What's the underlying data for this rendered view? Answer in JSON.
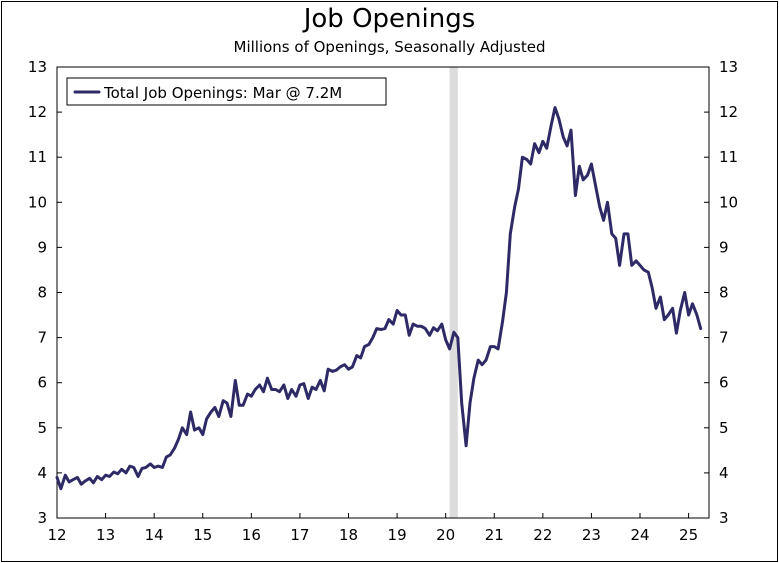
{
  "chart_data": {
    "type": "line",
    "title": "Job Openings",
    "subtitle": "Millions of Openings, Seasonally Adjusted",
    "xlabel": "",
    "ylabel": "",
    "x_ticks": [
      "12",
      "13",
      "14",
      "15",
      "16",
      "17",
      "18",
      "19",
      "20",
      "21",
      "22",
      "23",
      "24",
      "25"
    ],
    "y_ticks": [
      "3",
      "4",
      "5",
      "6",
      "7",
      "8",
      "9",
      "10",
      "11",
      "12",
      "13"
    ],
    "xlim": [
      2012.0,
      2025.42
    ],
    "ylim": [
      3,
      13
    ],
    "grid": false,
    "legend_position": "top-left",
    "recession": {
      "start": 2020.08,
      "end": 2020.25
    },
    "series": [
      {
        "name": "Total Job Openings: Mar @ 7.2M",
        "color": "#2e2a66",
        "points": [
          [
            2012.0,
            3.9
          ],
          [
            2012.08,
            3.65
          ],
          [
            2012.17,
            3.95
          ],
          [
            2012.25,
            3.8
          ],
          [
            2012.33,
            3.85
          ],
          [
            2012.42,
            3.9
          ],
          [
            2012.5,
            3.75
          ],
          [
            2012.58,
            3.82
          ],
          [
            2012.67,
            3.88
          ],
          [
            2012.75,
            3.78
          ],
          [
            2012.83,
            3.92
          ],
          [
            2012.92,
            3.85
          ],
          [
            2013.0,
            3.95
          ],
          [
            2013.08,
            3.92
          ],
          [
            2013.17,
            4.02
          ],
          [
            2013.25,
            3.98
          ],
          [
            2013.33,
            4.08
          ],
          [
            2013.42,
            4.0
          ],
          [
            2013.5,
            4.15
          ],
          [
            2013.58,
            4.12
          ],
          [
            2013.67,
            3.92
          ],
          [
            2013.75,
            4.1
          ],
          [
            2013.83,
            4.12
          ],
          [
            2013.92,
            4.2
          ],
          [
            2014.0,
            4.12
          ],
          [
            2014.08,
            4.15
          ],
          [
            2014.17,
            4.12
          ],
          [
            2014.25,
            4.35
          ],
          [
            2014.33,
            4.4
          ],
          [
            2014.42,
            4.55
          ],
          [
            2014.5,
            4.75
          ],
          [
            2014.58,
            5.0
          ],
          [
            2014.67,
            4.85
          ],
          [
            2014.75,
            5.35
          ],
          [
            2014.83,
            4.95
          ],
          [
            2014.92,
            5.0
          ],
          [
            2015.0,
            4.85
          ],
          [
            2015.08,
            5.2
          ],
          [
            2015.17,
            5.35
          ],
          [
            2015.25,
            5.45
          ],
          [
            2015.33,
            5.25
          ],
          [
            2015.42,
            5.6
          ],
          [
            2015.5,
            5.55
          ],
          [
            2015.58,
            5.25
          ],
          [
            2015.67,
            6.05
          ],
          [
            2015.75,
            5.5
          ],
          [
            2015.83,
            5.5
          ],
          [
            2015.92,
            5.75
          ],
          [
            2016.0,
            5.7
          ],
          [
            2016.08,
            5.85
          ],
          [
            2016.17,
            5.95
          ],
          [
            2016.25,
            5.8
          ],
          [
            2016.33,
            6.1
          ],
          [
            2016.42,
            5.85
          ],
          [
            2016.5,
            5.85
          ],
          [
            2016.58,
            5.8
          ],
          [
            2016.67,
            5.95
          ],
          [
            2016.75,
            5.65
          ],
          [
            2016.83,
            5.85
          ],
          [
            2016.92,
            5.7
          ],
          [
            2017.0,
            5.95
          ],
          [
            2017.08,
            5.98
          ],
          [
            2017.17,
            5.65
          ],
          [
            2017.25,
            5.9
          ],
          [
            2017.33,
            5.85
          ],
          [
            2017.42,
            6.05
          ],
          [
            2017.5,
            5.82
          ],
          [
            2017.58,
            6.3
          ],
          [
            2017.67,
            6.25
          ],
          [
            2017.75,
            6.28
          ],
          [
            2017.83,
            6.35
          ],
          [
            2017.92,
            6.4
          ],
          [
            2018.0,
            6.3
          ],
          [
            2018.08,
            6.35
          ],
          [
            2018.17,
            6.6
          ],
          [
            2018.25,
            6.55
          ],
          [
            2018.33,
            6.8
          ],
          [
            2018.42,
            6.85
          ],
          [
            2018.5,
            7.0
          ],
          [
            2018.58,
            7.2
          ],
          [
            2018.67,
            7.18
          ],
          [
            2018.75,
            7.2
          ],
          [
            2018.83,
            7.4
          ],
          [
            2018.92,
            7.3
          ],
          [
            2019.0,
            7.6
          ],
          [
            2019.08,
            7.5
          ],
          [
            2019.17,
            7.5
          ],
          [
            2019.25,
            7.05
          ],
          [
            2019.33,
            7.3
          ],
          [
            2019.42,
            7.25
          ],
          [
            2019.5,
            7.25
          ],
          [
            2019.58,
            7.2
          ],
          [
            2019.67,
            7.05
          ],
          [
            2019.75,
            7.22
          ],
          [
            2019.83,
            7.15
          ],
          [
            2019.92,
            7.3
          ],
          [
            2020.0,
            6.95
          ],
          [
            2020.08,
            6.75
          ],
          [
            2020.17,
            7.12
          ],
          [
            2020.25,
            7.0
          ],
          [
            2020.33,
            5.55
          ],
          [
            2020.42,
            4.6
          ],
          [
            2020.5,
            5.55
          ],
          [
            2020.58,
            6.1
          ],
          [
            2020.67,
            6.5
          ],
          [
            2020.75,
            6.4
          ],
          [
            2020.83,
            6.5
          ],
          [
            2020.92,
            6.8
          ],
          [
            2021.0,
            6.8
          ],
          [
            2021.08,
            6.75
          ],
          [
            2021.17,
            7.35
          ],
          [
            2021.25,
            8.0
          ],
          [
            2021.33,
            9.3
          ],
          [
            2021.42,
            9.9
          ],
          [
            2021.5,
            10.3
          ],
          [
            2021.58,
            11.0
          ],
          [
            2021.67,
            10.95
          ],
          [
            2021.75,
            10.85
          ],
          [
            2021.83,
            11.3
          ],
          [
            2021.92,
            11.1
          ],
          [
            2022.0,
            11.35
          ],
          [
            2022.08,
            11.2
          ],
          [
            2022.17,
            11.7
          ],
          [
            2022.25,
            12.1
          ],
          [
            2022.33,
            11.85
          ],
          [
            2022.42,
            11.45
          ],
          [
            2022.5,
            11.25
          ],
          [
            2022.58,
            11.6
          ],
          [
            2022.67,
            10.15
          ],
          [
            2022.75,
            10.8
          ],
          [
            2022.83,
            10.5
          ],
          [
            2022.92,
            10.6
          ],
          [
            2023.0,
            10.85
          ],
          [
            2023.08,
            10.4
          ],
          [
            2023.17,
            9.9
          ],
          [
            2023.25,
            9.6
          ],
          [
            2023.33,
            10.0
          ],
          [
            2023.42,
            9.3
          ],
          [
            2023.5,
            9.2
          ],
          [
            2023.58,
            8.6
          ],
          [
            2023.67,
            9.3
          ],
          [
            2023.75,
            9.3
          ],
          [
            2023.83,
            8.6
          ],
          [
            2023.92,
            8.7
          ],
          [
            2024.0,
            8.6
          ],
          [
            2024.08,
            8.5
          ],
          [
            2024.17,
            8.45
          ],
          [
            2024.25,
            8.1
          ],
          [
            2024.33,
            7.65
          ],
          [
            2024.42,
            7.9
          ],
          [
            2024.5,
            7.4
          ],
          [
            2024.58,
            7.5
          ],
          [
            2024.67,
            7.65
          ],
          [
            2024.75,
            7.1
          ],
          [
            2024.83,
            7.6
          ],
          [
            2024.92,
            8.0
          ],
          [
            2025.0,
            7.5
          ],
          [
            2025.08,
            7.75
          ],
          [
            2025.17,
            7.5
          ],
          [
            2025.25,
            7.2
          ]
        ]
      }
    ]
  }
}
